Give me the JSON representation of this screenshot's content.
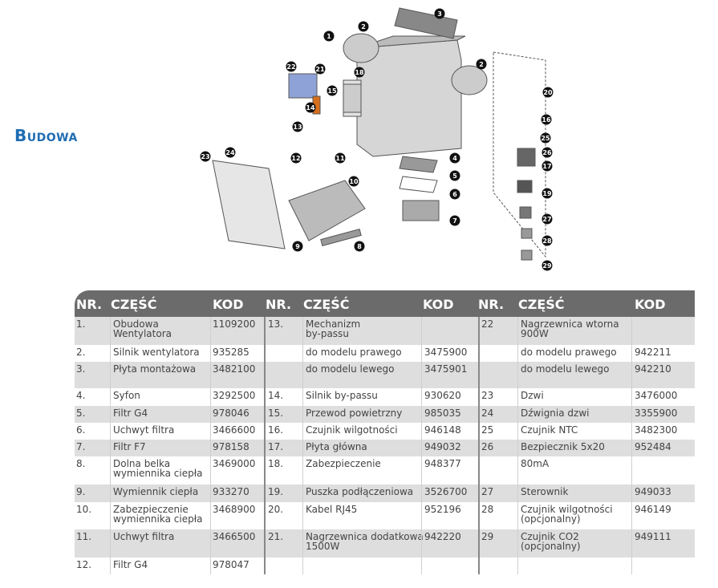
{
  "title": "Budowa",
  "diagram": {
    "callouts": [
      "1",
      "2",
      "3",
      "2",
      "22",
      "21",
      "18",
      "15",
      "14",
      "13",
      "20",
      "16",
      "25",
      "26",
      "17",
      "12",
      "11",
      "10",
      "4",
      "5",
      "6",
      "7",
      "23",
      "24",
      "9",
      "8",
      "19",
      "27",
      "28",
      "29"
    ]
  },
  "table": {
    "headers": [
      "NR.",
      "CZĘŚĆ",
      "KOD",
      "NR.",
      "CZĘŚĆ",
      "KOD",
      "NR.",
      "CZĘŚĆ",
      "KOD"
    ],
    "rows": [
      [
        "1.",
        "Obudowa\nWentylatora",
        "1109200",
        "13.",
        "Mechanizm\nby-passu",
        "",
        "22",
        "Nagrzewnica wtorna\n 900W",
        ""
      ],
      [
        "2.",
        "Silnik wentylatora",
        "935285",
        "",
        "do modelu prawego",
        "3475900",
        "",
        "do modelu prawego",
        "942211"
      ],
      [
        "3.",
        "Płyta montażowa",
        "3482100",
        "",
        "do modelu lewego",
        "3475901",
        "",
        "do modelu lewego",
        "942210"
      ],
      [
        "4.",
        "Syfon",
        "3292500",
        "14.",
        "Silnik by-passu",
        "930620",
        "23",
        "Dzwi",
        "3476000"
      ],
      [
        "5.",
        "Filtr G4",
        "978046",
        "15.",
        "Przewod powietrzny",
        "985035",
        "24",
        "Dźwignia dzwi",
        "3355900"
      ],
      [
        "6.",
        "Uchwyt filtra",
        "3466600",
        "16.",
        "Czujnik wilgotności",
        "946148",
        "25",
        "Czujnik NTC",
        "3482300"
      ],
      [
        "7.",
        "Filtr F7",
        "978158",
        "17.",
        "Płyta główna",
        "949032",
        "26",
        "Bezpiecznik 5x20",
        "952484"
      ],
      [
        "8.",
        "Dolna belka\nwymiennika ciepła",
        "3469000",
        "18.",
        "Zabezpieczenie",
        "948377",
        "",
        "80mA",
        ""
      ],
      [
        "9.",
        "Wymiennik ciepła",
        "933270",
        "19.",
        "Puszka podłączeniowa",
        "3526700",
        "27",
        "Sterownik",
        "949033"
      ],
      [
        "10.",
        "Zabezpieczenie\nwymiennika ciepła",
        "3468900",
        "20.",
        "Kabel RJ45",
        "952196",
        "28",
        "Czujnik wilgotności\n(opcjonalny)",
        "946149"
      ],
      [
        "11.",
        "Uchwyt filtra",
        "3466500",
        "21.",
        "Nagrzewnica dodatkowa\n1500W",
        "942220",
        "29",
        "Czujnik CO2\n(opcjonalny)",
        "949111"
      ],
      [
        "12.",
        "Filtr G4",
        "978047",
        "",
        "",
        "",
        "",
        "",
        ""
      ]
    ]
  }
}
